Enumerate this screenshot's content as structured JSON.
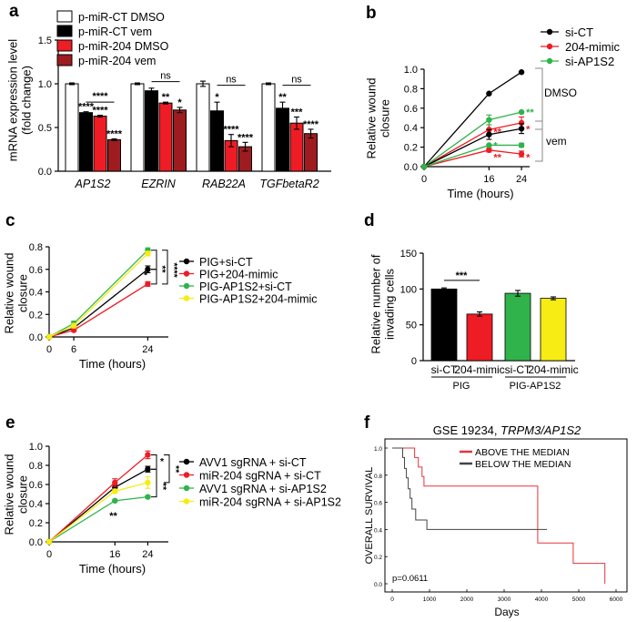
{
  "panels": [
    {
      "id": "a",
      "label": "a"
    },
    {
      "id": "b",
      "label": "b"
    },
    {
      "id": "c",
      "label": "c"
    },
    {
      "id": "d",
      "label": "d"
    },
    {
      "id": "e",
      "label": "e"
    },
    {
      "id": "f",
      "label": "f"
    }
  ],
  "colors": {
    "white": "#ffffff",
    "black": "#000000",
    "red": "#ee1c25",
    "darkred": "#9e1b1f",
    "green": "#2fb34a",
    "yellow": "#f7ec13",
    "gray": "#777777",
    "km_red": "#e8333a",
    "km_black": "#444444"
  },
  "chart_data": [
    {
      "id": "a",
      "type": "bar",
      "ylabel": "mRNA expression level\n(fold change)",
      "ylim": [
        0,
        1.5
      ],
      "yticks": [
        "0.0",
        "0.5",
        "1.0",
        "1.5"
      ],
      "categories": [
        "AP1S2",
        "EZRIN",
        "RAB22A",
        "TGFbetaR2"
      ],
      "series": [
        {
          "name": "p-miR-CT DMSO",
          "color": "#ffffff",
          "values": [
            1.0,
            1.0,
            1.0,
            1.0
          ],
          "errors": [
            0.01,
            0.01,
            0.03,
            0.01
          ],
          "sig": [
            "",
            "",
            "",
            ""
          ]
        },
        {
          "name": "p-miR-CT vem",
          "color": "#000000",
          "values": [
            0.67,
            0.92,
            0.69,
            0.72
          ],
          "errors": [
            0.01,
            0.03,
            0.1,
            0.07
          ],
          "sig": [
            "****",
            "",
            "*",
            "**"
          ]
        },
        {
          "name": "p-miR-204 DMSO",
          "color": "#ee1c25",
          "values": [
            0.63,
            0.78,
            0.35,
            0.55
          ],
          "errors": [
            0.01,
            0.01,
            0.07,
            0.07
          ],
          "sig": [
            "****",
            "**",
            "****",
            "***"
          ]
        },
        {
          "name": "p-miR-204 vem",
          "color": "#9e1b1f",
          "values": [
            0.36,
            0.7,
            0.28,
            0.43
          ],
          "errors": [
            0.01,
            0.03,
            0.05,
            0.05
          ],
          "sig": [
            "****",
            "*",
            "****",
            "****"
          ]
        }
      ],
      "brackets": [
        {
          "group": 0,
          "from": 1,
          "to": 3,
          "label": "****"
        },
        {
          "group": 1,
          "from": 1,
          "to": 3,
          "label": "ns"
        },
        {
          "group": 2,
          "from": 1,
          "to": 3,
          "label": "ns"
        },
        {
          "group": 3,
          "from": 1,
          "to": 3,
          "label": "ns"
        }
      ]
    },
    {
      "id": "b",
      "type": "line",
      "xlabel": "Time (hours)",
      "ylabel": "Relative wound\nclosure",
      "x": [
        0,
        16,
        24
      ],
      "xticks": [
        "0",
        "16",
        "24"
      ],
      "xlim": [
        0,
        26
      ],
      "ylim": [
        0,
        1.0
      ],
      "yticks": [
        "0.0",
        "0.2",
        "0.4",
        "0.6",
        "0.8",
        "1.0"
      ],
      "legend": [
        "si-CT",
        "204-mimic",
        "si-AP1S2"
      ],
      "series": [
        {
          "name": "si-CT",
          "color": "#000000",
          "values": [
            0,
            0.75,
            0.97
          ],
          "errors": [
            0,
            0,
            0
          ],
          "legend": true
        },
        {
          "name": "204-mimic",
          "color": "#ee1c25",
          "values": [
            0,
            0.38,
            0.45
          ],
          "errors": [
            0,
            0.05,
            0.06
          ],
          "legend": true
        },
        {
          "name": "si-AP1S2",
          "color": "#2fb34a",
          "values": [
            0,
            0.48,
            0.56
          ],
          "errors": [
            0,
            0.05,
            0.01
          ],
          "legend": true
        },
        {
          "name": "si-CT vem",
          "color": "#000000",
          "values": [
            0,
            0.33,
            0.39
          ],
          "errors": [
            0,
            0.05,
            0.05
          ],
          "legend": false
        },
        {
          "name": "204-mimic vem",
          "color": "#ee1c25",
          "values": [
            0,
            0.17,
            0.13
          ],
          "errors": [
            0,
            0.02,
            0.03
          ],
          "legend": false
        },
        {
          "name": "si-AP1S2 vem",
          "color": "#2fb34a",
          "values": [
            0,
            0.22,
            0.22
          ],
          "errors": [
            0,
            0.01,
            0.02
          ],
          "legend": false
        }
      ],
      "annotations": [
        {
          "text": "**",
          "x": 16,
          "y": 0.36,
          "color": "#ee1c25"
        },
        {
          "text": "*",
          "x": 24,
          "y": 0.39,
          "color": "#ee1c25"
        },
        {
          "text": "**",
          "x": 24,
          "y": 0.56,
          "color": "#2fb34a"
        },
        {
          "text": "*",
          "x": 16,
          "y": 0.22,
          "color": "#2fb34a"
        },
        {
          "text": "**",
          "x": 16,
          "y": 0.1,
          "color": "#ee1c25"
        },
        {
          "text": "*",
          "x": 24,
          "y": 0.1,
          "color": "#ee1c25"
        }
      ],
      "group_labels": [
        "DMSO",
        "vem"
      ]
    },
    {
      "id": "c",
      "type": "line",
      "xlabel": "Time (hours)",
      "ylabel": "Relative wound\nclosure",
      "x": [
        0,
        6,
        24
      ],
      "xticks": [
        "0",
        "6",
        "24"
      ],
      "xlim": [
        0,
        29
      ],
      "ylim": [
        0,
        0.8
      ],
      "yticks": [
        "0.0",
        "0.2",
        "0.4",
        "0.6",
        "0.8"
      ],
      "legend": [
        "PIG+si-CT",
        "PIG+204-mimic",
        "PIG-AP1S2+si-CT",
        "PIG-AP1S2+204-mimic"
      ],
      "series": [
        {
          "name": "PIG+si-CT",
          "color": "#000000",
          "values": [
            0,
            0.08,
            0.6
          ],
          "errors": [
            0,
            0.02,
            0.03
          ]
        },
        {
          "name": "PIG+204-mimic",
          "color": "#ee1c25",
          "values": [
            0,
            0.06,
            0.47
          ],
          "errors": [
            0,
            0.01,
            0.02
          ]
        },
        {
          "name": "PIG-AP1S2+si-CT",
          "color": "#2fb34a",
          "values": [
            0,
            0.12,
            0.77
          ],
          "errors": [
            0,
            0.02,
            0.02
          ]
        },
        {
          "name": "PIG-AP1S2+204-mimic",
          "color": "#f7ec13",
          "values": [
            0,
            0.1,
            0.74
          ],
          "errors": [
            0,
            0.02,
            0.02
          ]
        }
      ],
      "sig_labels": [
        "**",
        "****",
        "*"
      ]
    },
    {
      "id": "d",
      "type": "bar",
      "ylabel": "Relative number of\ninvading cells",
      "ylim": [
        0,
        150
      ],
      "yticks": [
        "0",
        "50",
        "100",
        "150"
      ],
      "categories": [
        "si-CT",
        "204-mimic",
        "si-CT",
        "204-mimic"
      ],
      "values": [
        100,
        65,
        94,
        87
      ],
      "errors": [
        1.5,
        3,
        4,
        2
      ],
      "colors": [
        "#000000",
        "#ee1c25",
        "#2fb34a",
        "#f7ec13"
      ],
      "groups": [
        "PIG",
        "PIG-AP1S2"
      ],
      "sig": "***"
    },
    {
      "id": "e",
      "type": "line",
      "xlabel": "Time (hours)",
      "ylabel": "Relative wound\nclosure",
      "x": [
        0,
        16,
        24
      ],
      "xticks": [
        "0",
        "16",
        "24"
      ],
      "xlim": [
        0,
        29
      ],
      "ylim": [
        0,
        1.0
      ],
      "yticks": [
        "0.0",
        "0.2",
        "0.4",
        "0.6",
        "0.8",
        "1.0"
      ],
      "legend": [
        "AVV1 sgRNA + si-CT",
        "miR-204 sgRNA + si-CT",
        "AVV1 sgRNA + si-AP1S2",
        "miR-204 sgRNA + si-AP1S2"
      ],
      "series": [
        {
          "name": "AVV1 sgRNA + si-CT",
          "color": "#000000",
          "values": [
            0,
            0.57,
            0.76
          ],
          "errors": [
            0,
            0.03,
            0.03
          ]
        },
        {
          "name": "miR-204 sgRNA + si-CT",
          "color": "#ee1c25",
          "values": [
            0,
            0.62,
            0.91
          ],
          "errors": [
            0,
            0.04,
            0.04
          ]
        },
        {
          "name": "AVV1 sgRNA + si-AP1S2",
          "color": "#2fb34a",
          "values": [
            0,
            0.43,
            0.47
          ],
          "errors": [
            0,
            0.01,
            0.01
          ]
        },
        {
          "name": "miR-204 sgRNA + si-AP1S2",
          "color": "#f7ec13",
          "values": [
            0,
            0.53,
            0.62
          ],
          "errors": [
            0,
            0.02,
            0.06
          ]
        }
      ],
      "sig_labels": [
        "*",
        "**",
        "**"
      ],
      "annotation": "**"
    },
    {
      "id": "f",
      "type": "line",
      "title_prefix": "GSE 19234, ",
      "title_italic": "TRPM3/AP1S2",
      "xlabel": "Days",
      "ylabel": "OVERALL SURVIVAL",
      "xlim": [
        0,
        6000
      ],
      "xticks": [
        "0",
        "1000",
        "2000",
        "3000",
        "4000",
        "5000",
        "6000"
      ],
      "ylim": [
        0,
        1.0
      ],
      "yticks": [
        "0.0",
        "0.2",
        "0.4",
        "0.6",
        "0.8",
        "1.0"
      ],
      "legend": [
        "ABOVE THE MEDIAN",
        "BELOW THE MEDIAN"
      ],
      "pvalue": "p=0.0611",
      "series": [
        {
          "name": "ABOVE THE MEDIAN",
          "color": "#e8333a",
          "steps": [
            [
              0,
              1.0
            ],
            [
              600,
              1.0
            ],
            [
              600,
              0.93
            ],
            [
              700,
              0.93
            ],
            [
              700,
              0.86
            ],
            [
              800,
              0.86
            ],
            [
              800,
              0.79
            ],
            [
              850,
              0.79
            ],
            [
              850,
              0.72
            ],
            [
              3900,
              0.72
            ],
            [
              3900,
              0.3
            ],
            [
              4850,
              0.3
            ],
            [
              4850,
              0.15
            ],
            [
              5700,
              0.15
            ],
            [
              5700,
              0.0
            ]
          ]
        },
        {
          "name": "BELOW THE MEDIAN",
          "color": "#444444",
          "steps": [
            [
              0,
              1.0
            ],
            [
              280,
              1.0
            ],
            [
              280,
              0.93
            ],
            [
              330,
              0.93
            ],
            [
              330,
              0.85
            ],
            [
              380,
              0.85
            ],
            [
              380,
              0.78
            ],
            [
              430,
              0.78
            ],
            [
              430,
              0.7
            ],
            [
              480,
              0.7
            ],
            [
              480,
              0.63
            ],
            [
              530,
              0.63
            ],
            [
              530,
              0.55
            ],
            [
              630,
              0.55
            ],
            [
              630,
              0.47
            ],
            [
              930,
              0.47
            ],
            [
              930,
              0.4
            ],
            [
              4150,
              0.4
            ]
          ]
        }
      ]
    }
  ]
}
